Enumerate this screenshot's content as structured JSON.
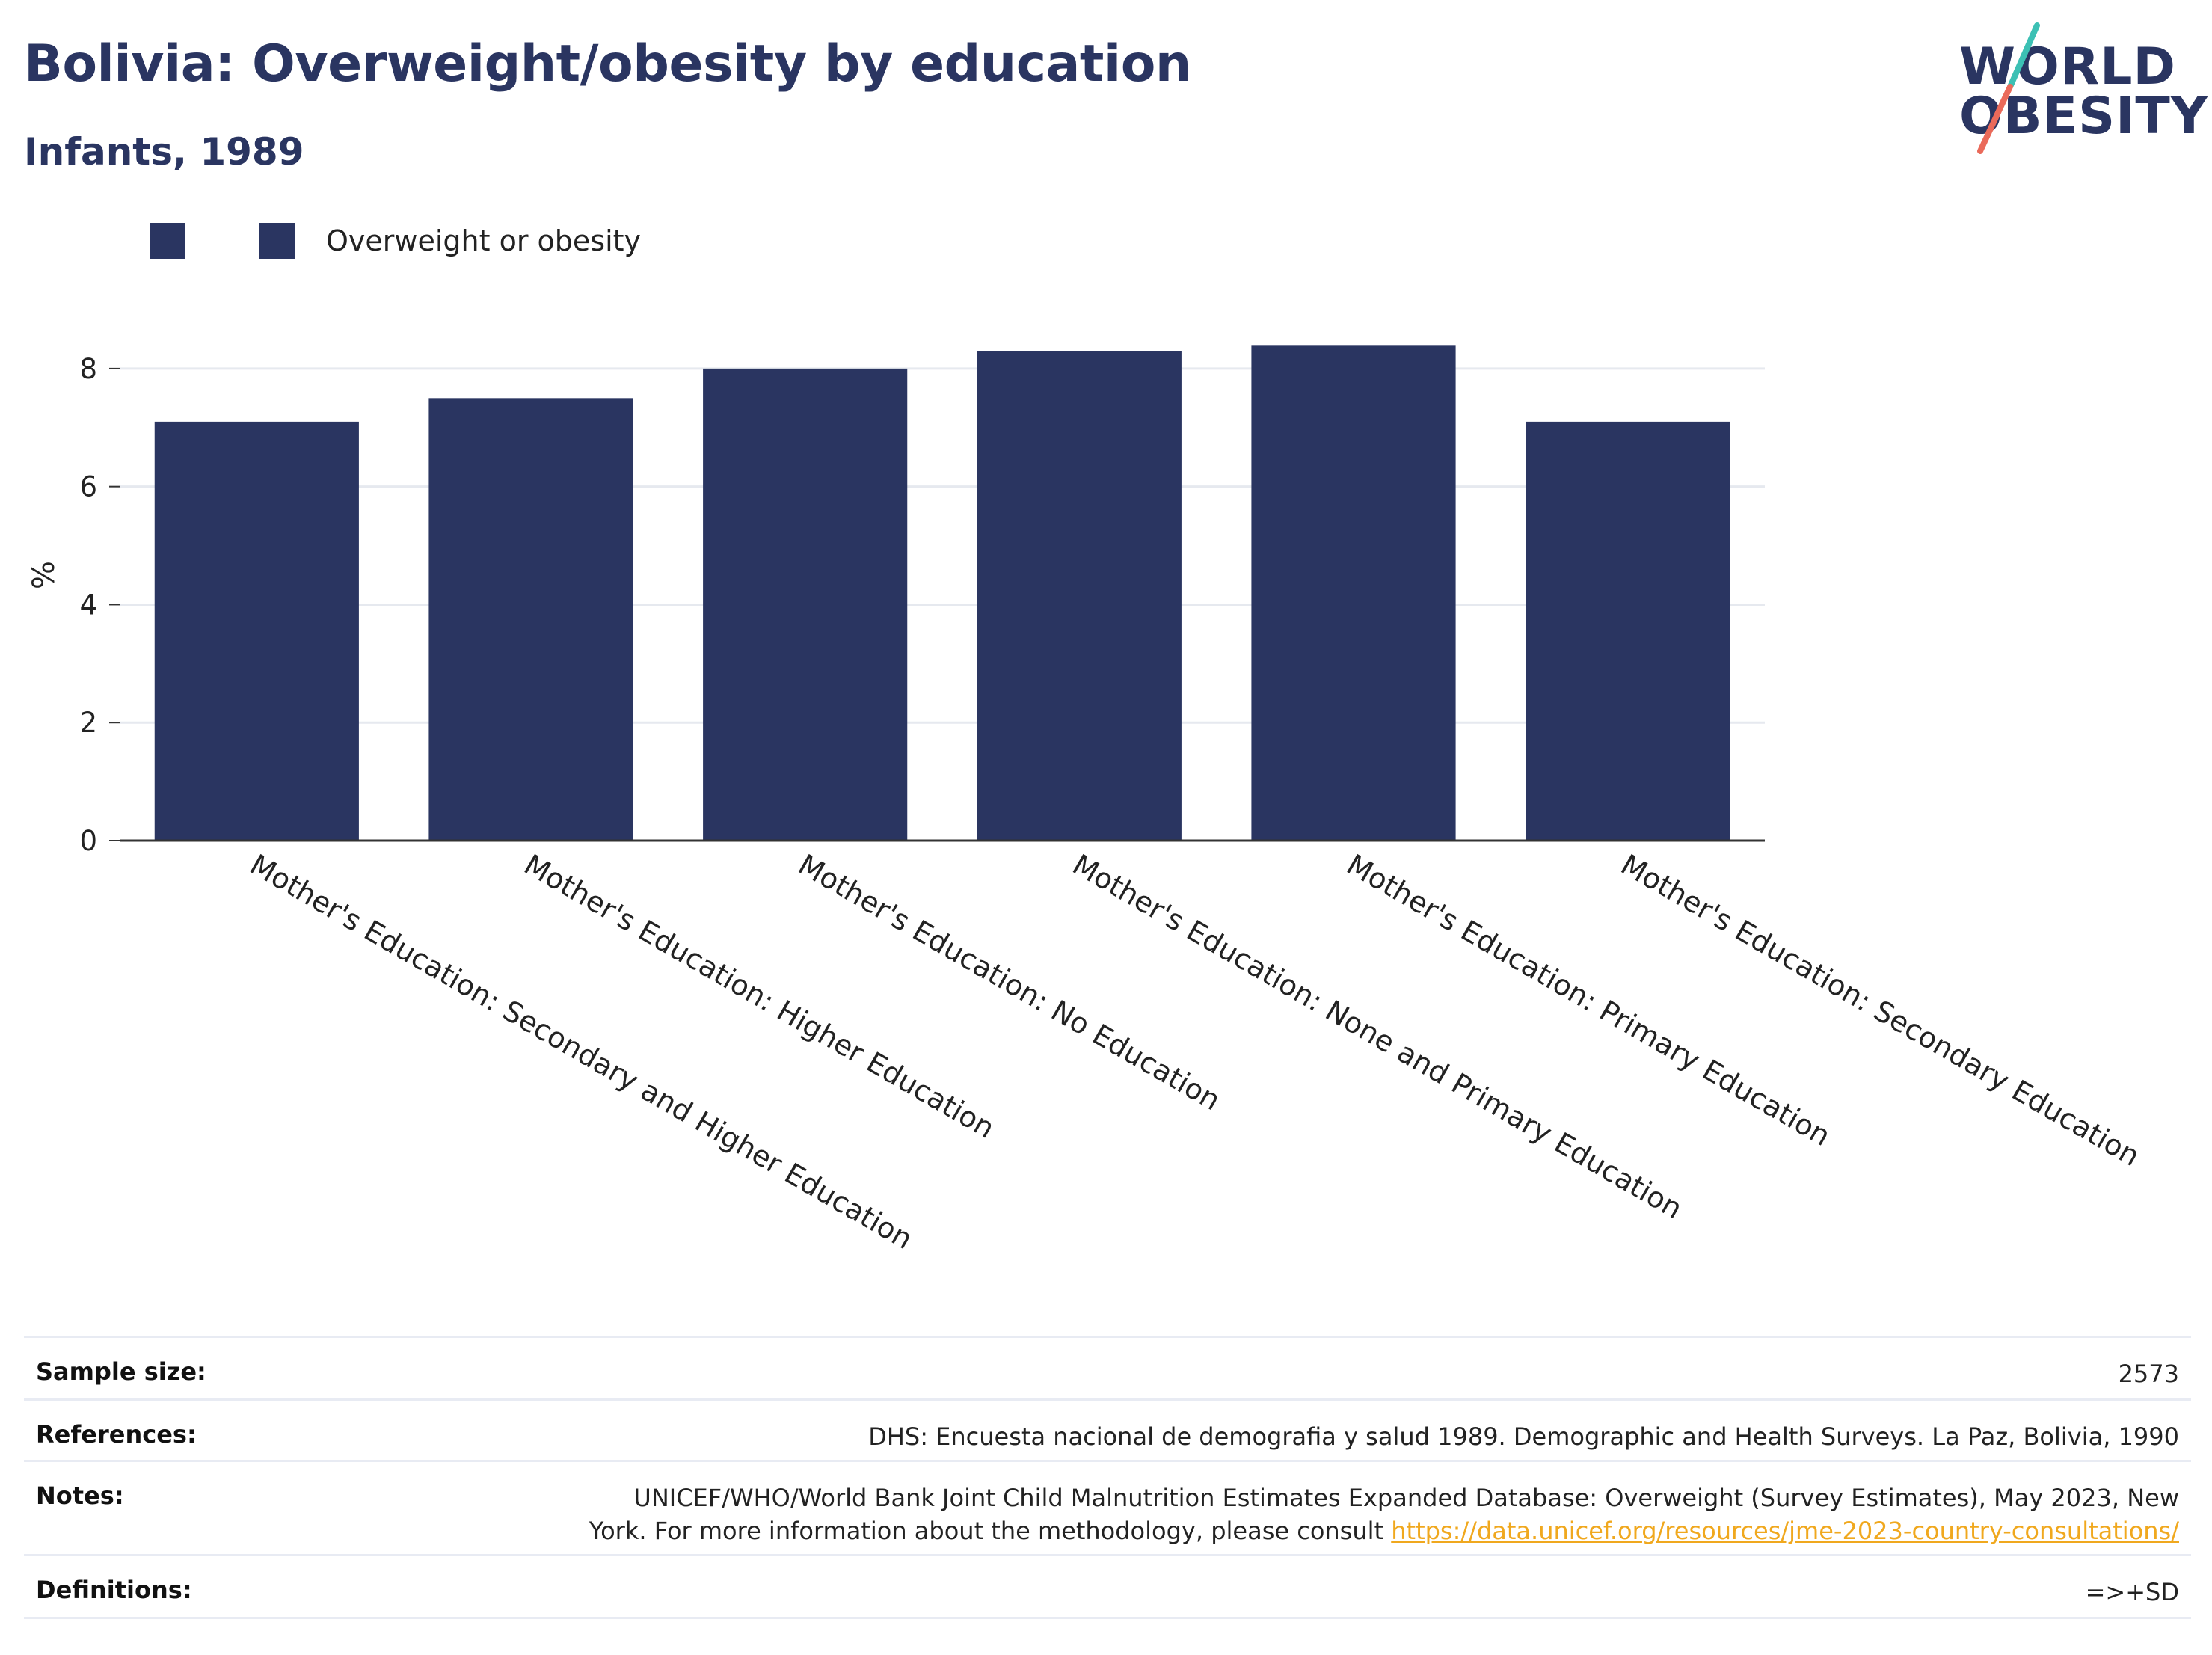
{
  "header": {
    "title": "Bolivia: Overweight/obesity by education",
    "subtitle": "Infants, 1989"
  },
  "logo": {
    "line1": "WORLD",
    "line2": "OBESITY"
  },
  "legend": {
    "label": "Overweight or obesity"
  },
  "colors": {
    "bar": "#2a3561",
    "title": "#2a3561",
    "link": "#f0a81e",
    "accent_teal": "#3cc0b4",
    "accent_red": "#ea6a5a"
  },
  "chart_data": {
    "type": "bar",
    "ylabel": "%",
    "ylim": [
      0,
      9
    ],
    "yticks": [
      0,
      2,
      4,
      6,
      8
    ],
    "categories": [
      "Mother's Education: Secondary and Higher Education",
      "Mother's Education: Higher Education",
      "Mother's Education: No Education",
      "Mother's Education: None and Primary Education",
      "Mother's Education: Primary Education",
      "Mother's Education: Secondary Education"
    ],
    "series": [
      {
        "name": "Overweight or obesity",
        "values": [
          7.1,
          7.5,
          8.0,
          8.3,
          8.4,
          7.1
        ]
      }
    ],
    "grid": true,
    "legend_position": "top-left"
  },
  "meta": {
    "sample_size_label": "Sample size:",
    "sample_size_value": "2573",
    "references_label": "References:",
    "references_value": "DHS: Encuesta nacional de demografia y salud 1989. Demographic and Health Surveys. La Paz, Bolivia, 1990",
    "notes_label": "Notes:",
    "notes_line1": "UNICEF/WHO/World Bank Joint Child Malnutrition Estimates Expanded Database: Overweight (Survey Estimates), May 2023, New",
    "notes_line2": "York. For more information about the methodology, please consult",
    "notes_link": "https://data.unicef.org/resources/jme-2023-country-consultations/",
    "definitions_label": "Definitions:",
    "definitions_value": "=>+SD"
  }
}
